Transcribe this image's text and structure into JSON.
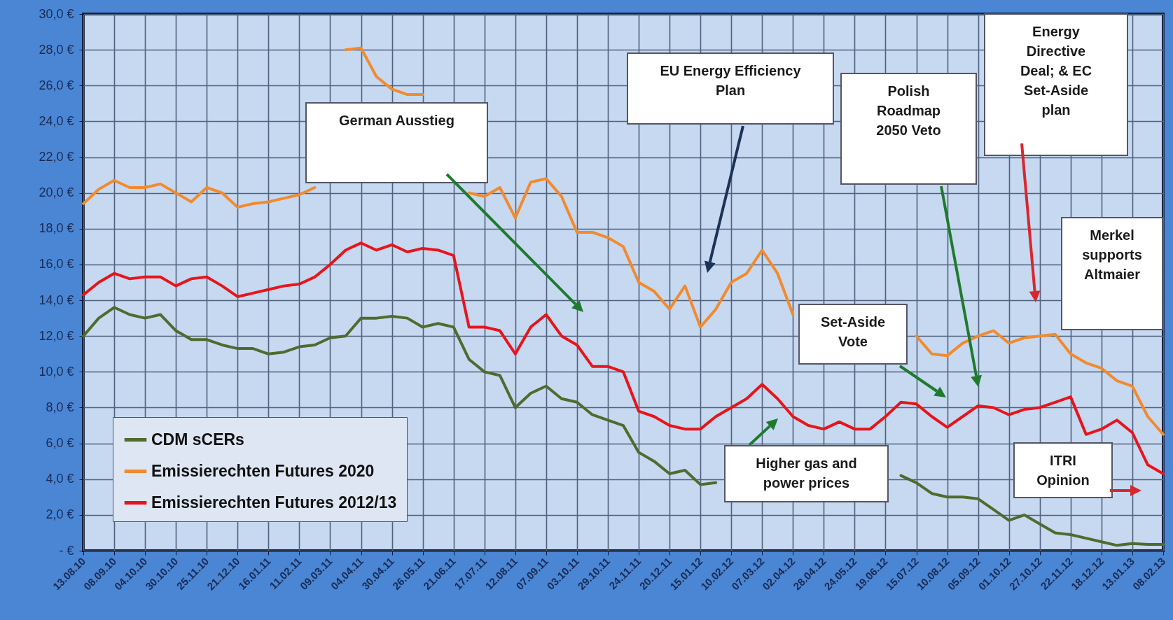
{
  "chart_data": {
    "type": "line",
    "x": [
      "2010-08-13",
      "2010-08-26",
      "2010-09-08",
      "2010-09-21",
      "2010-10-04",
      "2010-10-17",
      "2010-10-30",
      "2010-11-12",
      "2010-11-25",
      "2010-12-08",
      "2010-12-21",
      "2011-01-03",
      "2011-01-16",
      "2011-01-29",
      "2011-02-11",
      "2011-02-24",
      "2011-03-09",
      "2011-03-22",
      "2011-04-04",
      "2011-04-17",
      "2011-04-30",
      "2011-05-13",
      "2011-05-26",
      "2011-06-08",
      "2011-06-21",
      "2011-07-04",
      "2011-07-17",
      "2011-07-30",
      "2011-08-12",
      "2011-08-25",
      "2011-09-07",
      "2011-09-20",
      "2011-10-03",
      "2011-10-16",
      "2011-10-29",
      "2011-11-11",
      "2011-11-24",
      "2011-12-07",
      "2011-12-20",
      "2012-01-02",
      "2012-01-15",
      "2012-01-28",
      "2012-02-10",
      "2012-02-23",
      "2012-03-07",
      "2012-03-20",
      "2012-04-02",
      "2012-04-15",
      "2012-04-28",
      "2012-05-11",
      "2012-05-24",
      "2012-06-06",
      "2012-06-19",
      "2012-07-02",
      "2012-07-15",
      "2012-07-28",
      "2012-08-10",
      "2012-08-23",
      "2012-09-05",
      "2012-09-18",
      "2012-10-01",
      "2012-10-14",
      "2012-10-27",
      "2012-11-09",
      "2012-11-22",
      "2012-12-05",
      "2012-12-18",
      "2012-12-31",
      "2013-01-13",
      "2013-01-26",
      "2013-02-08"
    ],
    "series": [
      {
        "name": "CDM sCERs",
        "color": "#4f6b2e",
        "values": [
          12.0,
          13.0,
          13.6,
          13.2,
          13.0,
          13.2,
          12.3,
          11.8,
          11.8,
          11.5,
          11.3,
          11.3,
          11.0,
          11.1,
          11.4,
          11.5,
          11.9,
          12.0,
          13.0,
          13.0,
          13.1,
          13.0,
          12.5,
          12.7,
          12.5,
          10.7,
          10.0,
          9.8,
          8.0,
          8.8,
          9.2,
          8.5,
          8.3,
          7.6,
          7.3,
          7.0,
          5.5,
          5.0,
          4.3,
          4.5,
          3.7,
          3.8,
          null,
          null,
          null,
          null,
          null,
          null,
          null,
          null,
          null,
          null,
          null,
          4.2,
          3.8,
          3.2,
          3.0,
          3.0,
          2.9,
          2.3,
          1.7,
          2.0,
          1.5,
          1.0,
          0.9,
          0.7,
          0.5,
          0.3,
          0.4,
          0.35,
          0.35
        ]
      },
      {
        "name": "Emissierechten Futures 2020",
        "color": "#f28a2e",
        "values": [
          19.4,
          20.2,
          20.7,
          20.3,
          20.3,
          20.5,
          20.0,
          19.5,
          20.3,
          20.0,
          19.2,
          19.4,
          19.5,
          19.7,
          19.9,
          20.3,
          null,
          28.0,
          28.1,
          26.5,
          25.8,
          25.5,
          25.5,
          null,
          null,
          20.0,
          19.8,
          20.3,
          18.6,
          20.6,
          20.8,
          19.8,
          17.8,
          17.8,
          17.5,
          17.0,
          15.0,
          14.5,
          13.5,
          14.8,
          12.5,
          13.5,
          15.0,
          15.5,
          16.8,
          15.5,
          13.2,
          null,
          null,
          null,
          null,
          null,
          null,
          null,
          12.0,
          11.0,
          10.9,
          11.6,
          12.0,
          12.3,
          11.6,
          11.9,
          12.0,
          12.1,
          11.0,
          10.5,
          10.2,
          9.5,
          9.2,
          7.5,
          6.5
        ]
      },
      {
        "name": "Emissierechten Futures 2012/13",
        "color": "#e8141b",
        "values": [
          14.3,
          15.0,
          15.5,
          15.2,
          15.3,
          15.3,
          14.8,
          15.2,
          15.3,
          14.8,
          14.2,
          14.4,
          14.6,
          14.8,
          14.9,
          15.3,
          16.0,
          16.8,
          17.2,
          16.8,
          17.1,
          16.7,
          16.9,
          16.8,
          16.5,
          12.5,
          12.5,
          12.3,
          11.0,
          12.5,
          13.2,
          12.0,
          11.5,
          10.3,
          10.3,
          10.0,
          7.8,
          7.5,
          7.0,
          6.8,
          6.8,
          7.5,
          8.0,
          8.5,
          9.3,
          8.5,
          7.5,
          7.0,
          6.8,
          7.2,
          6.8,
          6.8,
          7.5,
          8.3,
          8.2,
          7.5,
          6.9,
          7.5,
          8.1,
          8.0,
          7.6,
          7.9,
          8.0,
          8.3,
          8.6,
          6.5,
          6.8,
          7.3,
          6.6,
          4.8,
          4.3
        ]
      }
    ],
    "xlim": [
      "2010-08-13",
      "2013-02-08"
    ],
    "xticks": [
      {
        "value": "2010-08-13",
        "label": "13.08.10"
      },
      {
        "value": "2010-09-08",
        "label": "08.09.10"
      },
      {
        "value": "2010-10-04",
        "label": "04.10.10"
      },
      {
        "value": "2010-10-30",
        "label": "30.10.10"
      },
      {
        "value": "2010-11-25",
        "label": "25.11.10"
      },
      {
        "value": "2010-12-21",
        "label": "21.12.10"
      },
      {
        "value": "2011-01-16",
        "label": "16.01.11"
      },
      {
        "value": "2011-02-11",
        "label": "11.02.11"
      },
      {
        "value": "2011-03-09",
        "label": "09.03.11"
      },
      {
        "value": "2011-04-04",
        "label": "04.04.11"
      },
      {
        "value": "2011-04-30",
        "label": "30.04.11"
      },
      {
        "value": "2011-05-26",
        "label": "26.05.11"
      },
      {
        "value": "2011-06-21",
        "label": "21.06.11"
      },
      {
        "value": "2011-07-17",
        "label": "17.07.11"
      },
      {
        "value": "2011-08-12",
        "label": "12.08.11"
      },
      {
        "value": "2011-09-07",
        "label": "07.09.11"
      },
      {
        "value": "2011-10-03",
        "label": "03.10.11"
      },
      {
        "value": "2011-10-29",
        "label": "29.10.11"
      },
      {
        "value": "2011-11-24",
        "label": "24.11.11"
      },
      {
        "value": "2011-12-20",
        "label": "20.12.11"
      },
      {
        "value": "2012-01-15",
        "label": "15.01.12"
      },
      {
        "value": "2012-02-10",
        "label": "10.02.12"
      },
      {
        "value": "2012-03-07",
        "label": "07.03.12"
      },
      {
        "value": "2012-04-02",
        "label": "02.04.12"
      },
      {
        "value": "2012-04-28",
        "label": "28.04.12"
      },
      {
        "value": "2012-05-24",
        "label": "24.05.12"
      },
      {
        "value": "2012-06-19",
        "label": "19.06.12"
      },
      {
        "value": "2012-07-15",
        "label": "15.07.12"
      },
      {
        "value": "2012-08-10",
        "label": "10.08.12"
      },
      {
        "value": "2012-09-05",
        "label": "05.09.12"
      },
      {
        "value": "2012-10-01",
        "label": "01.10.12"
      },
      {
        "value": "2012-10-27",
        "label": "27.10.12"
      },
      {
        "value": "2012-11-22",
        "label": "22.11.12"
      },
      {
        "value": "2012-12-18",
        "label": "18.12.12"
      },
      {
        "value": "2013-01-13",
        "label": "13.01.13"
      },
      {
        "value": "2013-02-08",
        "label": "08.02.13"
      }
    ],
    "ylim": [
      0,
      30
    ],
    "yticks": [
      {
        "value": 0,
        "label": "- €"
      },
      {
        "value": 2,
        "label": "2,0 €"
      },
      {
        "value": 4,
        "label": "4,0 €"
      },
      {
        "value": 6,
        "label": "6,0 €"
      },
      {
        "value": 8,
        "label": "8,0 €"
      },
      {
        "value": 10,
        "label": "10,0 €"
      },
      {
        "value": 12,
        "label": "12,0 €"
      },
      {
        "value": 14,
        "label": "14,0 €"
      },
      {
        "value": 16,
        "label": "16,0 €"
      },
      {
        "value": 18,
        "label": "18,0 €"
      },
      {
        "value": 20,
        "label": "20,0 €"
      },
      {
        "value": 22,
        "label": "22,0 €"
      },
      {
        "value": 24,
        "label": "24,0 €"
      },
      {
        "value": 26,
        "label": "26,0 €"
      },
      {
        "value": 28,
        "label": "28,0 €"
      },
      {
        "value": 30,
        "label": "30,0 €"
      }
    ],
    "grid": true,
    "legend": "bottom left",
    "marker": "none",
    "line_style": "solid",
    "annotations": [
      "German Ausstieg",
      "EU Energy Efficiency Plan",
      "Polish Roadmap 2050 Veto",
      "Energy Directive Deal; & EC Set-Aside plan",
      "Merkel supports Altmaier",
      "Set-Aside Vote",
      "Higher gas and power prices",
      "ITRI Opinion"
    ]
  }
}
